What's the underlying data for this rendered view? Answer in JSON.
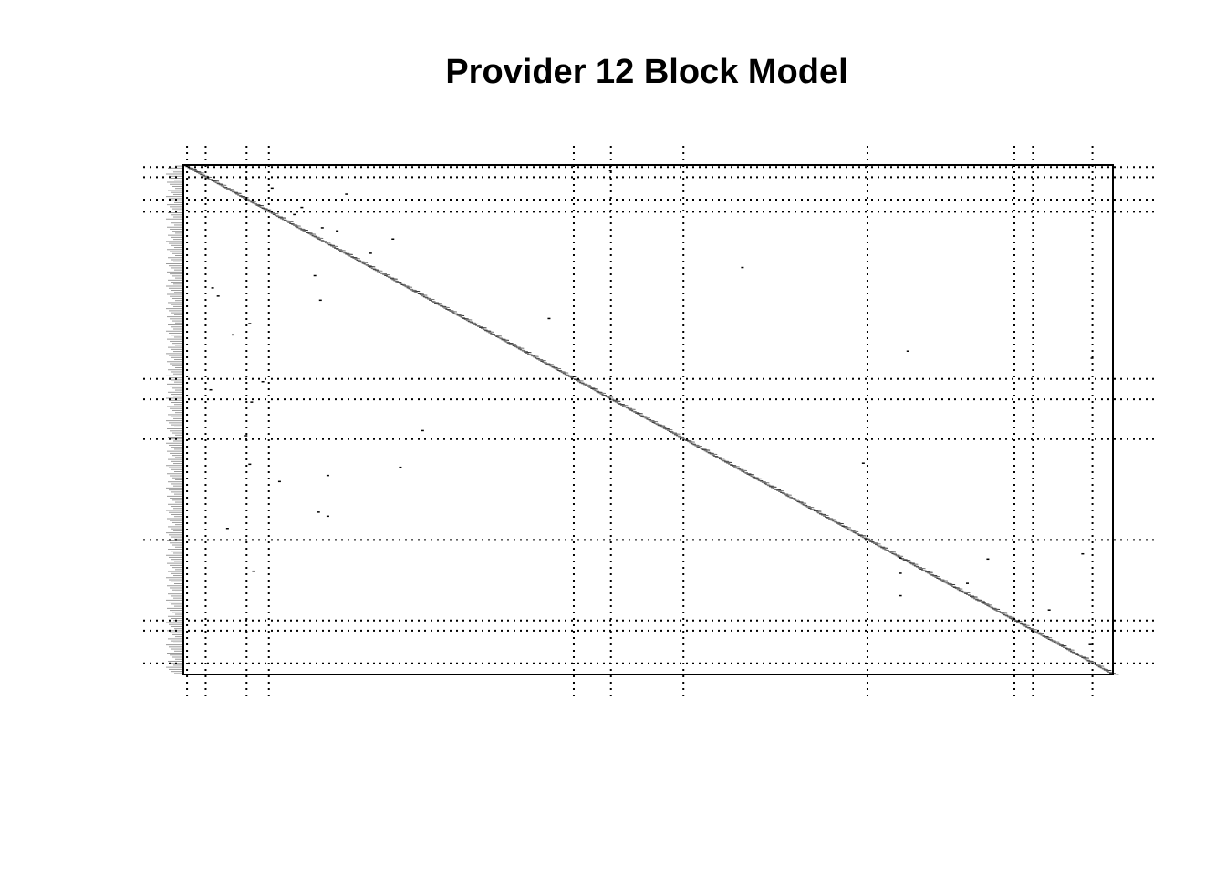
{
  "chart_data": {
    "type": "heatmap",
    "title": "Provider 12 Block Model",
    "xlabel": "",
    "ylabel": "",
    "n_nodes": 500,
    "axis_range": [
      0,
      500
    ],
    "block_boundaries": [
      2,
      12,
      34,
      46,
      210,
      230,
      269,
      368,
      447,
      457,
      489
    ],
    "diagonal_band": {
      "from": [
        0,
        0
      ],
      "to": [
        500,
        500
      ]
    },
    "off_diagonal_ties": [
      [
        5,
        229
      ],
      [
        22,
        47
      ],
      [
        28,
        87
      ],
      [
        41,
        63
      ],
      [
        48,
        59
      ],
      [
        61,
        74
      ],
      [
        64,
        82
      ],
      [
        72,
        112
      ],
      [
        86,
        100
      ],
      [
        100,
        300
      ],
      [
        108,
        70
      ],
      [
        120,
        15
      ],
      [
        128,
        18
      ],
      [
        132,
        73
      ],
      [
        150,
        196
      ],
      [
        155,
        35
      ],
      [
        166,
        26
      ],
      [
        182,
        389
      ],
      [
        189,
        488
      ],
      [
        212,
        42
      ],
      [
        220,
        14
      ],
      [
        232,
        36
      ],
      [
        260,
        128
      ],
      [
        265,
        33
      ],
      [
        292,
        365
      ],
      [
        293,
        35
      ],
      [
        296,
        116
      ],
      [
        304,
        77
      ],
      [
        310,
        51
      ],
      [
        340,
        72
      ],
      [
        344,
        77
      ],
      [
        356,
        23
      ],
      [
        381,
        483
      ],
      [
        385,
        385
      ],
      [
        386,
        432
      ],
      [
        398,
        37
      ],
      [
        400,
        385
      ],
      [
        410,
        421
      ],
      [
        422,
        385
      ],
      [
        436,
        465
      ],
      [
        470,
        487
      ]
    ],
    "grid": "dotted block boundaries"
  },
  "colors": {
    "background": "#ffffff",
    "ink": "#000000",
    "band": "#6e6e6e",
    "row_labels": "#9a9a9a"
  }
}
